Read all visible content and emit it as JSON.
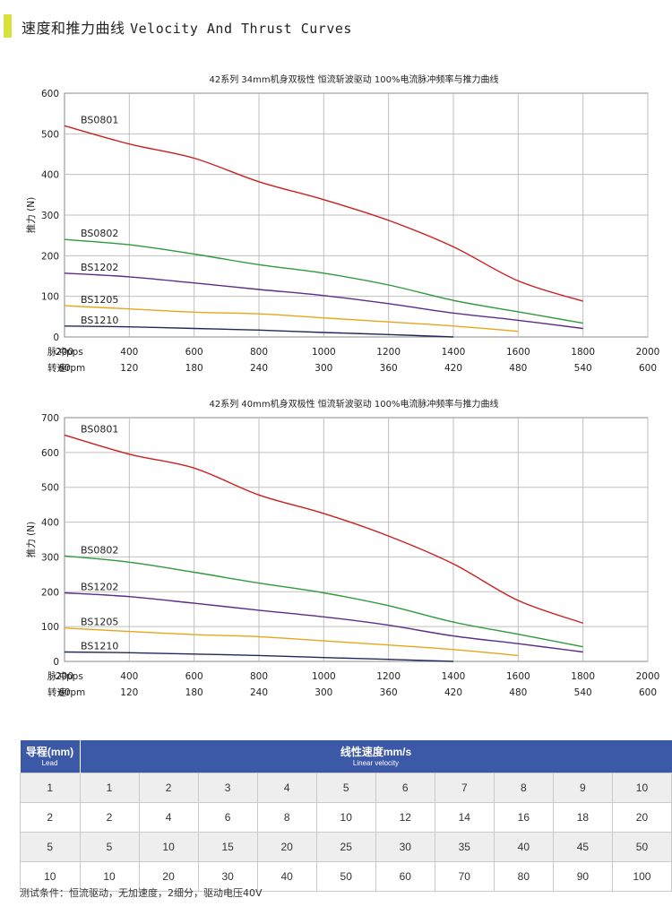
{
  "header": {
    "title_cn": "速度和推力曲线",
    "title_en": "Velocity And Thrust Curves",
    "accent_color": "#d8e23a"
  },
  "chart_data": [
    {
      "type": "line",
      "title": "42系列 34mm机身双极性 恒流斩波驱动 100%电流脉冲频率与推力曲线",
      "ylabel": "推力 (N)",
      "xlabel_pps": "脉冲pps",
      "xlabel_rpm": "转速rpm",
      "x_ticks": [
        "200",
        "400",
        "600",
        "800",
        "1000",
        "1200",
        "1400",
        "1600",
        "1800",
        "2000"
      ],
      "rpm_ticks": [
        "60",
        "120",
        "180",
        "240",
        "300",
        "360",
        "420",
        "480",
        "540",
        "600"
      ],
      "xlim": [
        200,
        2000
      ],
      "ylim": [
        0,
        600
      ],
      "y_ticks": [
        "0",
        "100",
        "200",
        "300",
        "400",
        "500",
        "600"
      ],
      "grid": true,
      "series": [
        {
          "name": "BS0801",
          "color": "#cc1f1f",
          "x": [
            200,
            400,
            600,
            800,
            1000,
            1200,
            1400,
            1600,
            1800
          ],
          "y": [
            520,
            475,
            440,
            382,
            338,
            287,
            222,
            138,
            88
          ]
        },
        {
          "name": "BS0802",
          "color": "#2e9a3c",
          "x": [
            200,
            400,
            600,
            800,
            1000,
            1200,
            1400,
            1600,
            1800
          ],
          "y": [
            240,
            227,
            204,
            178,
            157,
            128,
            90,
            62,
            34
          ]
        },
        {
          "name": "BS1202",
          "color": "#5b2d86",
          "x": [
            200,
            400,
            600,
            800,
            1000,
            1200,
            1400,
            1600,
            1800
          ],
          "y": [
            157,
            148,
            133,
            117,
            102,
            82,
            59,
            41,
            21
          ]
        },
        {
          "name": "BS1205",
          "color": "#e8a619",
          "x": [
            200,
            400,
            600,
            800,
            1000,
            1200,
            1400,
            1600
          ],
          "y": [
            77,
            69,
            61,
            57,
            47,
            37,
            27,
            14
          ]
        },
        {
          "name": "BS1210",
          "color": "#1e2a5a",
          "x": [
            200,
            400,
            600,
            800,
            1000,
            1200,
            1400
          ],
          "y": [
            27,
            25,
            21,
            17,
            11,
            6,
            0
          ]
        }
      ]
    },
    {
      "type": "line",
      "title": "42系列 40mm机身双极性 恒流斩波驱动 100%电流脉冲频率与推力曲线",
      "ylabel": "推力 (N)",
      "xlabel_pps": "脉冲pps",
      "xlabel_rpm": "转速rpm",
      "x_ticks": [
        "200",
        "400",
        "600",
        "800",
        "1000",
        "1200",
        "1400",
        "1600",
        "1800",
        "2000"
      ],
      "rpm_ticks": [
        "60",
        "120",
        "180",
        "240",
        "300",
        "360",
        "420",
        "480",
        "540",
        "600"
      ],
      "xlim": [
        200,
        2000
      ],
      "ylim": [
        0,
        700
      ],
      "y_ticks": [
        "0",
        "100",
        "200",
        "300",
        "400",
        "500",
        "600",
        "700"
      ],
      "grid": true,
      "series": [
        {
          "name": "BS0801",
          "color": "#cc1f1f",
          "x": [
            200,
            400,
            600,
            800,
            1000,
            1200,
            1400,
            1600,
            1800
          ],
          "y": [
            650,
            595,
            555,
            478,
            425,
            360,
            280,
            175,
            110
          ]
        },
        {
          "name": "BS0802",
          "color": "#2e9a3c",
          "x": [
            200,
            400,
            600,
            800,
            1000,
            1200,
            1400,
            1600,
            1800
          ],
          "y": [
            303,
            285,
            256,
            225,
            197,
            160,
            113,
            78,
            42
          ]
        },
        {
          "name": "BS1202",
          "color": "#5b2d86",
          "x": [
            200,
            400,
            600,
            800,
            1000,
            1200,
            1400,
            1600,
            1800
          ],
          "y": [
            197,
            186,
            167,
            147,
            128,
            104,
            73,
            51,
            27
          ]
        },
        {
          "name": "BS1205",
          "color": "#e8a619",
          "x": [
            200,
            400,
            600,
            800,
            1000,
            1200,
            1400,
            1600
          ],
          "y": [
            96,
            86,
            77,
            71,
            59,
            47,
            34,
            17
          ]
        },
        {
          "name": "BS1210",
          "color": "#1e2a5a",
          "x": [
            200,
            400,
            600,
            800,
            1000,
            1200,
            1400
          ],
          "y": [
            27,
            25,
            21,
            17,
            11,
            6,
            0
          ]
        }
      ]
    }
  ],
  "table": {
    "lead_header_cn": "导程(mm)",
    "lead_header_en": "Lead",
    "speed_header_cn": "线性速度mm/s",
    "speed_header_en": "Linear velocity",
    "rows": [
      [
        "1",
        "1",
        "2",
        "3",
        "4",
        "5",
        "6",
        "7",
        "8",
        "9",
        "10"
      ],
      [
        "2",
        "2",
        "4",
        "6",
        "8",
        "10",
        "12",
        "14",
        "16",
        "18",
        "20"
      ],
      [
        "5",
        "5",
        "10",
        "15",
        "20",
        "25",
        "30",
        "35",
        "40",
        "45",
        "50"
      ],
      [
        "10",
        "10",
        "20",
        "30",
        "40",
        "50",
        "60",
        "70",
        "80",
        "90",
        "100"
      ]
    ]
  },
  "footnote": "测试条件：恒流驱动，无加速度，2细分，驱动电压40V"
}
